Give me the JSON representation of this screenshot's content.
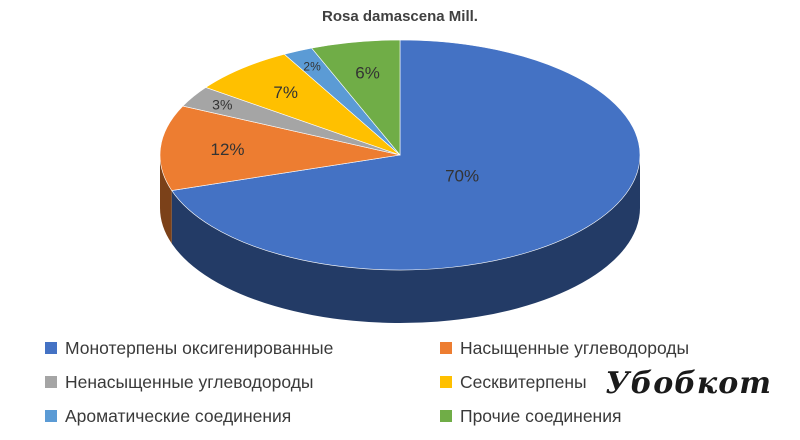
{
  "chart_data": {
    "type": "pie",
    "title": "Rosa damascena Mill.",
    "three_d": true,
    "slices": [
      {
        "label": "Монотерпены оксигенированные",
        "value": 70,
        "display": "70%",
        "color": "#4472C4"
      },
      {
        "label": "Насыщенные углеводороды",
        "value": 12,
        "display": "12%",
        "color": "#ED7D31"
      },
      {
        "label": "Ненасыщенные углеводороды",
        "value": 3,
        "display": "3%",
        "color": "#A5A5A5"
      },
      {
        "label": "Сесквитерпены",
        "value": 7,
        "display": "7%",
        "color": "#FFC000"
      },
      {
        "label": "Ароматические соединения",
        "value": 2,
        "display": "2%",
        "color": "#5B9BD5"
      },
      {
        "label": "Прочие соединения",
        "value": 6,
        "display": "6%",
        "color": "#70AD47"
      }
    ],
    "legend_position": "bottom"
  },
  "watermark": {
    "text": "Убобкот"
  }
}
